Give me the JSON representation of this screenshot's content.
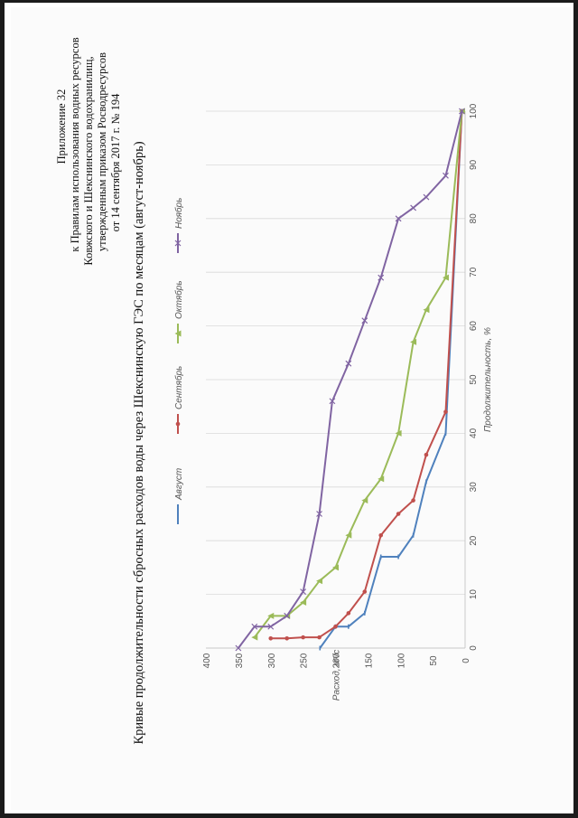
{
  "header": {
    "lines": [
      "Приложение 32",
      "к Правилам использования водных ресурсов",
      "Ковжского и Шекснинского водохранилищ,",
      "утвержденным приказом Росводресурсов",
      "от 14 сентября 2017 г. № 194"
    ]
  },
  "chart_data": {
    "type": "line",
    "title": "Кривые продолжительности сбросных расходов воды через Шекснинскую ГЭС по месяцам (август-ноябрь)",
    "xlabel": "Продолжительность, %",
    "ylabel": "Расход, м³/с",
    "xlim": [
      0,
      100
    ],
    "ylim": [
      0,
      400
    ],
    "x_ticks": [
      0,
      10,
      20,
      30,
      40,
      50,
      60,
      70,
      80,
      90,
      100
    ],
    "y_ticks": [
      0,
      50,
      100,
      150,
      200,
      250,
      300,
      350,
      400
    ],
    "orientation": "rotated 90° counter-clockwise on the page",
    "grid": "vertical gridlines at x ticks",
    "legend_position": "top",
    "series": [
      {
        "name": "Август",
        "color": "#4f81bd",
        "marker": "dash",
        "points": [
          [
            0,
            224
          ],
          [
            4,
            200
          ],
          [
            4,
            180
          ],
          [
            6.5,
            155
          ],
          [
            17,
            130
          ],
          [
            17,
            103
          ],
          [
            21,
            80
          ],
          [
            31,
            60
          ],
          [
            40,
            30
          ],
          [
            100,
            5
          ]
        ]
      },
      {
        "name": "Сентябрь",
        "color": "#c0504d",
        "marker": "circle",
        "points": [
          [
            1.8,
            300
          ],
          [
            1.8,
            275
          ],
          [
            2,
            250
          ],
          [
            2,
            225
          ],
          [
            4,
            200
          ],
          [
            6.5,
            180
          ],
          [
            10.5,
            155
          ],
          [
            21,
            130
          ],
          [
            25,
            103
          ],
          [
            27.5,
            80
          ],
          [
            36,
            60
          ],
          [
            44,
            30
          ],
          [
            100,
            5
          ]
        ]
      },
      {
        "name": "Октябрь",
        "color": "#9bbb59",
        "marker": "triangle",
        "points": [
          [
            2,
            325
          ],
          [
            6,
            300
          ],
          [
            6,
            275
          ],
          [
            8.5,
            250
          ],
          [
            12.5,
            225
          ],
          [
            15,
            200
          ],
          [
            21,
            180
          ],
          [
            27.5,
            155
          ],
          [
            31.5,
            130
          ],
          [
            40,
            103
          ],
          [
            57,
            80
          ],
          [
            63,
            60
          ],
          [
            69,
            30
          ],
          [
            100,
            5
          ]
        ]
      },
      {
        "name": "Ноябрь",
        "color": "#8064a2",
        "marker": "x",
        "points": [
          [
            0,
            350
          ],
          [
            4,
            325
          ],
          [
            4,
            300
          ],
          [
            6,
            275
          ],
          [
            10.5,
            250
          ],
          [
            25,
            225
          ],
          [
            46,
            205
          ],
          [
            53,
            180
          ],
          [
            61,
            155
          ],
          [
            69,
            130
          ],
          [
            80,
            103
          ],
          [
            82,
            80
          ],
          [
            84,
            60
          ],
          [
            88,
            30
          ],
          [
            100,
            5
          ]
        ]
      }
    ]
  }
}
